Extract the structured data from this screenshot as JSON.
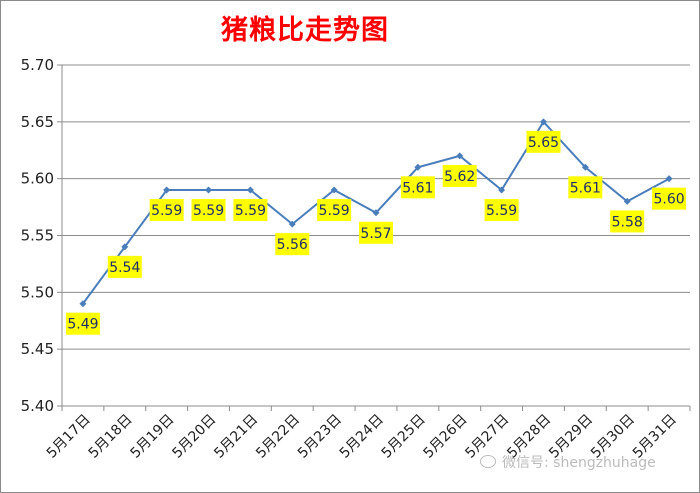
{
  "chart_data": {
    "type": "line",
    "title": "猪粮比走势图",
    "categories": [
      "5月17日",
      "5月18日",
      "5月19日",
      "5月20日",
      "5月21日",
      "5月22日",
      "5月23日",
      "5月24日",
      "5月25日",
      "5月26日",
      "5月27日",
      "5月28日",
      "5月29日",
      "5月30日",
      "5月31日"
    ],
    "values": [
      5.49,
      5.54,
      5.59,
      5.59,
      5.59,
      5.56,
      5.59,
      5.57,
      5.61,
      5.62,
      5.59,
      5.65,
      5.61,
      5.58,
      5.6
    ],
    "data_labels": [
      "5.49",
      "5.54",
      "5.59",
      "5.59",
      "5.59",
      "5.56",
      "5.59",
      "5.57",
      "5.61",
      "5.62",
      "5.59",
      "5.65",
      "5.61",
      "5.58",
      "5.60"
    ],
    "yticks": [
      "5.40",
      "5.45",
      "5.50",
      "5.55",
      "5.60",
      "5.65",
      "5.70"
    ],
    "ylim": [
      5.4,
      5.7
    ],
    "grid": true,
    "line_color": "#4a7ebb",
    "label_bg_color": "#ffff00",
    "title_color": "#ff0000"
  },
  "watermark": {
    "text": "微信号: shengzhuhage",
    "icon": "wechat-icon"
  }
}
